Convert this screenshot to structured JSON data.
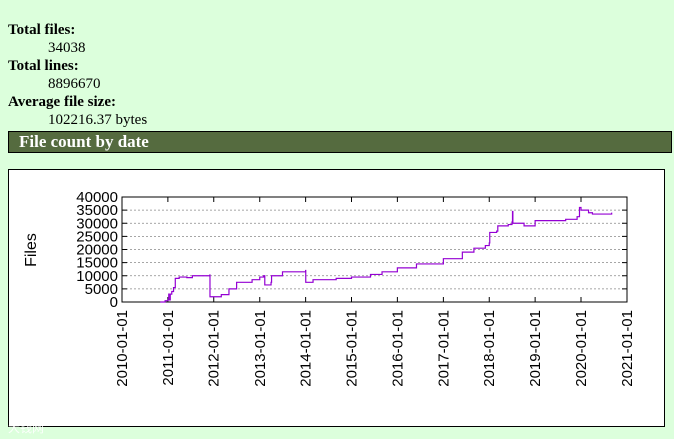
{
  "stats": [
    {
      "label": "Total files:",
      "value": "34038"
    },
    {
      "label": "Total lines:",
      "value": "8896670"
    },
    {
      "label": "Average file size:",
      "value": "102216.37 bytes"
    }
  ],
  "section": {
    "title": "File count by date"
  },
  "watermark": "大钱网",
  "chart_data": {
    "type": "line",
    "title": "",
    "xlabel": "",
    "ylabel": "Files",
    "xlim": [
      "2010-01-01",
      "2021-01-01"
    ],
    "ylim": [
      0,
      40000
    ],
    "y_ticks": [
      0,
      5000,
      10000,
      15000,
      20000,
      25000,
      30000,
      35000,
      40000
    ],
    "x_ticks": [
      "2010-01-01",
      "2011-01-01",
      "2012-01-01",
      "2013-01-01",
      "2014-01-01",
      "2015-01-01",
      "2016-01-01",
      "2017-01-01",
      "2018-01-01",
      "2019-01-01",
      "2020-01-01",
      "2021-01-01"
    ],
    "grid": true,
    "line_color": "#9400d3",
    "series": [
      {
        "values": [
          [
            "2010-11-01",
            0
          ],
          [
            "2010-12-10",
            500
          ],
          [
            "2011-01-01",
            800
          ],
          [
            "2011-01-08",
            3000
          ],
          [
            "2011-01-10",
            800
          ],
          [
            "2011-01-20",
            3000
          ],
          [
            "2011-02-01",
            4000
          ],
          [
            "2011-02-15",
            5500
          ],
          [
            "2011-03-01",
            9000
          ],
          [
            "2011-04-01",
            9500
          ],
          [
            "2011-06-01",
            9300
          ],
          [
            "2011-07-15",
            10000
          ],
          [
            "2011-12-01",
            10300
          ],
          [
            "2011-12-02",
            2000
          ],
          [
            "2012-03-01",
            2800
          ],
          [
            "2012-05-01",
            5000
          ],
          [
            "2012-07-01",
            7500
          ],
          [
            "2012-11-01",
            8500
          ],
          [
            "2013-01-01",
            9500
          ],
          [
            "2013-02-01",
            10000
          ],
          [
            "2013-02-10",
            6500
          ],
          [
            "2013-04-01",
            7500
          ],
          [
            "2013-04-05",
            10000
          ],
          [
            "2013-07-01",
            11500
          ],
          [
            "2014-01-01",
            12000
          ],
          [
            "2014-01-02",
            7500
          ],
          [
            "2014-03-01",
            8500
          ],
          [
            "2014-09-01",
            9000
          ],
          [
            "2015-01-01",
            9500
          ],
          [
            "2015-06-01",
            10500
          ],
          [
            "2015-09-01",
            11500
          ],
          [
            "2016-01-01",
            13000
          ],
          [
            "2016-06-01",
            14500
          ],
          [
            "2017-01-01",
            16500
          ],
          [
            "2017-06-01",
            19000
          ],
          [
            "2017-09-01",
            20500
          ],
          [
            "2017-12-01",
            21500
          ],
          [
            "2018-01-01",
            22500
          ],
          [
            "2018-01-05",
            26500
          ],
          [
            "2018-03-01",
            27000
          ],
          [
            "2018-03-10",
            29000
          ],
          [
            "2018-06-01",
            29500
          ],
          [
            "2018-07-01",
            30500
          ],
          [
            "2018-07-05",
            34500
          ],
          [
            "2018-07-08",
            30000
          ],
          [
            "2018-10-01",
            30000
          ],
          [
            "2018-10-05",
            29000
          ],
          [
            "2019-01-01",
            31000
          ],
          [
            "2019-06-01",
            31000
          ],
          [
            "2019-09-01",
            31500
          ],
          [
            "2019-12-01",
            32500
          ],
          [
            "2019-12-20",
            36000
          ],
          [
            "2020-01-01",
            35000
          ],
          [
            "2020-03-01",
            34000
          ],
          [
            "2020-04-01",
            33500
          ],
          [
            "2020-09-01",
            34038
          ]
        ]
      }
    ]
  }
}
